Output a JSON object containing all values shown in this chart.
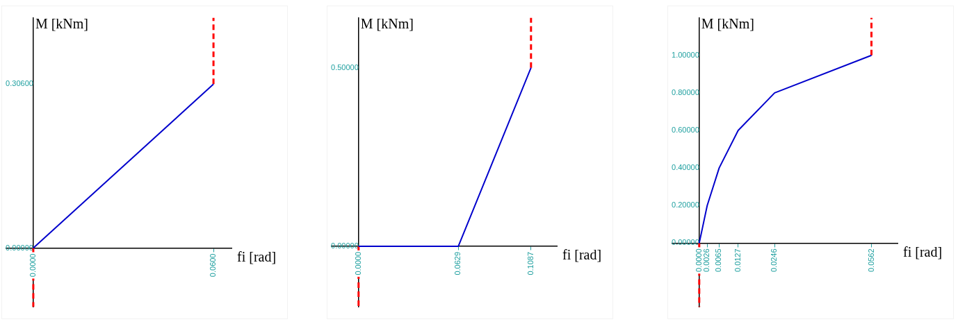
{
  "chart_data": [
    {
      "type": "line",
      "xlabel": "fi [rad]",
      "ylabel": "M [kNm]",
      "xlim": [
        -0.009,
        0.066
      ],
      "ylim": [
        -0.11,
        0.43
      ],
      "xticks": [
        {
          "value": 0,
          "label": "0.0000"
        },
        {
          "value": 0.06,
          "label": "0.0600"
        }
      ],
      "yticks": [
        {
          "value": 0,
          "label": "0.00000"
        },
        {
          "value": 0.306,
          "label": "0.30600"
        }
      ],
      "grid": false,
      "legend": false,
      "marker": "none",
      "series": [
        {
          "color": "#0000cc",
          "line_style": "solid",
          "x": [
            0,
            0.06
          ],
          "values": [
            0,
            0.306
          ]
        },
        {
          "color": "#ff0000",
          "line_style": "dashed",
          "x": [
            0,
            0
          ],
          "values": [
            0,
            -0.11
          ]
        },
        {
          "color": "#ff0000",
          "line_style": "dashed",
          "x": [
            0.06,
            0.06
          ],
          "values": [
            0.306,
            0.43
          ]
        }
      ]
    },
    {
      "type": "line",
      "xlabel": "fi [rad]",
      "ylabel": "M [kNm]",
      "xlim": [
        -0.017,
        0.125
      ],
      "ylim": [
        -0.17,
        0.64
      ],
      "xticks": [
        {
          "value": 0,
          "label": "0.0000"
        },
        {
          "value": 0.0629,
          "label": "0.0629"
        },
        {
          "value": 0.1087,
          "label": "0.1087"
        }
      ],
      "yticks": [
        {
          "value": 0,
          "label": "0.00000"
        },
        {
          "value": 0.5,
          "label": "0.50000"
        }
      ],
      "grid": false,
      "legend": false,
      "marker": "none",
      "series": [
        {
          "color": "#0000cc",
          "line_style": "solid",
          "x": [
            0,
            0.0629,
            0.1087
          ],
          "values": [
            0,
            0,
            0.5
          ]
        },
        {
          "color": "#ff0000",
          "line_style": "dashed",
          "x": [
            0,
            0
          ],
          "values": [
            0,
            -0.17
          ]
        },
        {
          "color": "#ff0000",
          "line_style": "dashed",
          "x": [
            0.1087,
            0.1087
          ],
          "values": [
            0.5,
            0.64
          ]
        }
      ]
    },
    {
      "type": "line",
      "xlabel": "fi [rad]",
      "ylabel": "M [kNm]",
      "xlim": [
        -0.0088,
        0.0647
      ],
      "ylim": [
        -0.34,
        1.2
      ],
      "xticks": [
        {
          "value": 0,
          "label": "0.0000"
        },
        {
          "value": 0.0026,
          "label": "0.0026"
        },
        {
          "value": 0.0065,
          "label": "0.0065"
        },
        {
          "value": 0.0127,
          "label": "0.0127"
        },
        {
          "value": 0.0246,
          "label": "0.0246"
        },
        {
          "value": 0.0562,
          "label": "0.0562"
        }
      ],
      "yticks": [
        {
          "value": 0,
          "label": "0.00000"
        },
        {
          "value": 0.2,
          "label": "0.20000"
        },
        {
          "value": 0.4,
          "label": "0.40000"
        },
        {
          "value": 0.6,
          "label": "0.60000"
        },
        {
          "value": 0.8,
          "label": "0.80000"
        },
        {
          "value": 1.0,
          "label": "1.00000"
        }
      ],
      "grid": false,
      "legend": false,
      "marker": "none",
      "series": [
        {
          "color": "#0000cc",
          "line_style": "solid",
          "x": [
            0,
            0.0026,
            0.0065,
            0.0127,
            0.0246,
            0.0562
          ],
          "values": [
            0,
            0.2,
            0.4,
            0.6,
            0.8,
            1.0
          ]
        },
        {
          "color": "#ff0000",
          "line_style": "dashed",
          "x": [
            0,
            0
          ],
          "values": [
            0,
            -0.34
          ]
        },
        {
          "color": "#ff0000",
          "line_style": "dashed",
          "x": [
            0.0562,
            0.0562
          ],
          "values": [
            1.0,
            1.2
          ]
        }
      ]
    }
  ]
}
